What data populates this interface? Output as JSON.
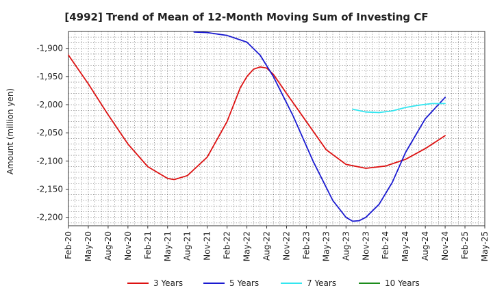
{
  "chart_data": {
    "type": "line",
    "title": "[4992]  Trend of Mean of 12-Month Moving Sum of Investing CF",
    "xlabel": "",
    "ylabel": "Amount (million yen)",
    "ylim": [
      -2215,
      -1870
    ],
    "yticks": [
      -1900,
      -1950,
      -2000,
      -2050,
      -2100,
      -2150,
      -2200
    ],
    "ytick_labels": [
      "-1,900",
      "-1,950",
      "-2,000",
      "-2,050",
      "-2,100",
      "-2,150",
      "-2,200"
    ],
    "x_range": [
      0,
      63
    ],
    "xtick_labels": [
      "Feb-20",
      "May-20",
      "Aug-20",
      "Nov-20",
      "Feb-21",
      "May-21",
      "Aug-21",
      "Nov-21",
      "Feb-22",
      "May-22",
      "Aug-22",
      "Nov-22",
      "Feb-23",
      "May-23",
      "Aug-23",
      "Nov-23",
      "Feb-24",
      "May-24",
      "Aug-24",
      "Nov-24",
      "Feb-25",
      "May-25"
    ],
    "grid": true,
    "legend_position": "bottom",
    "series": [
      {
        "name": "3 Years",
        "color": "#dd1111",
        "points": [
          [
            0,
            -1912
          ],
          [
            3,
            -1963
          ],
          [
            6,
            -2018
          ],
          [
            9,
            -2070
          ],
          [
            12,
            -2110
          ],
          [
            15,
            -2131
          ],
          [
            16,
            -2133
          ],
          [
            18,
            -2126
          ],
          [
            21,
            -2093
          ],
          [
            24,
            -2030
          ],
          [
            26,
            -1970
          ],
          [
            27,
            -1950
          ],
          [
            28,
            -1937
          ],
          [
            29,
            -1933
          ],
          [
            30,
            -1935
          ],
          [
            31,
            -1946
          ],
          [
            33,
            -1980
          ],
          [
            36,
            -2030
          ],
          [
            39,
            -2080
          ],
          [
            42,
            -2106
          ],
          [
            45,
            -2113
          ],
          [
            48,
            -2109
          ],
          [
            51,
            -2097
          ],
          [
            54,
            -2078
          ],
          [
            57,
            -2055
          ]
        ]
      },
      {
        "name": "5 Years",
        "color": "#1a1ad0",
        "points": [
          [
            19,
            -1871
          ],
          [
            21,
            -1872
          ],
          [
            24,
            -1877
          ],
          [
            27,
            -1889
          ],
          [
            29,
            -1912
          ],
          [
            31,
            -1950
          ],
          [
            34,
            -2020
          ],
          [
            37,
            -2100
          ],
          [
            40,
            -2170
          ],
          [
            42,
            -2200
          ],
          [
            43,
            -2207
          ],
          [
            44,
            -2206
          ],
          [
            45,
            -2200
          ],
          [
            47,
            -2177
          ],
          [
            49,
            -2138
          ],
          [
            51,
            -2085
          ],
          [
            54,
            -2025
          ],
          [
            57,
            -1987
          ]
        ]
      },
      {
        "name": "7 Years",
        "color": "#33e6f0",
        "points": [
          [
            43,
            -2008
          ],
          [
            45,
            -2013
          ],
          [
            47,
            -2014
          ],
          [
            49,
            -2011
          ],
          [
            51,
            -2005
          ],
          [
            53,
            -2001
          ],
          [
            55,
            -1998
          ],
          [
            57,
            -1998
          ]
        ]
      },
      {
        "name": "10 Years",
        "color": "#1c8c1c",
        "points": []
      }
    ]
  }
}
